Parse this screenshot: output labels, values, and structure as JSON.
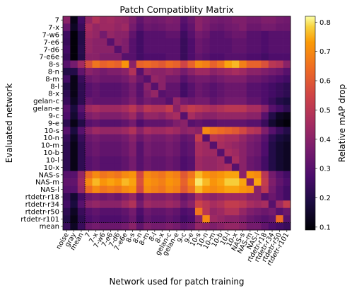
{
  "chart_data": {
    "type": "heatmap",
    "title": "Patch Compatiblity Matrix",
    "xlabel": "Network used for patch training",
    "ylabel": "Evaluated network",
    "colorbar_label": "Relative mAP drop",
    "colorbar_ticks": [
      0.1,
      0.2,
      0.3,
      0.4,
      0.5,
      0.6,
      0.7,
      0.8
    ],
    "value_range": [
      0.09,
      0.82
    ],
    "colormap": "inferno",
    "x_labels": [
      "noise",
      "gray",
      "mean",
      "7",
      "7-x",
      "7-w6",
      "7-e6",
      "7-d6",
      "7-e6e",
      "8-s",
      "8-n",
      "8-m",
      "8-l",
      "8-x",
      "gelan-c",
      "gelan-e",
      "9-c",
      "9-e",
      "10-s",
      "10-n",
      "10-m",
      "10-b",
      "10-l",
      "10-x",
      "NAS-s",
      "NAS-m",
      "NAS-l",
      "rtdetr-r18",
      "rtdetr-r34",
      "rtdetr-r50",
      "rtdetr-r101"
    ],
    "y_labels": [
      "7",
      "7-x",
      "7-w6",
      "7-e6",
      "7-d6",
      "7-e6e",
      "8-s",
      "8-n",
      "8-m",
      "8-l",
      "8-x",
      "gelan-c",
      "gelan-e",
      "9-c",
      "9-e",
      "10-s",
      "10-n",
      "10-m",
      "10-b",
      "10-l",
      "10-x",
      "NAS-s",
      "NAS-m",
      "NAS-l",
      "rtdetr-r18",
      "rtdetr-r34",
      "rtdetr-r50",
      "rtdetr-r101",
      "mean"
    ],
    "values": [
      [
        0.4,
        0.12,
        0.26,
        0.42,
        0.48,
        0.44,
        0.45,
        0.43,
        0.42,
        0.38,
        0.32,
        0.36,
        0.35,
        0.36,
        0.38,
        0.37,
        0.3,
        0.34,
        0.4,
        0.38,
        0.36,
        0.35,
        0.36,
        0.38,
        0.38,
        0.36,
        0.36,
        0.38,
        0.38,
        0.36,
        0.35
      ],
      [
        0.33,
        0.14,
        0.24,
        0.46,
        0.42,
        0.44,
        0.44,
        0.42,
        0.44,
        0.36,
        0.3,
        0.34,
        0.33,
        0.34,
        0.36,
        0.36,
        0.28,
        0.32,
        0.4,
        0.37,
        0.34,
        0.33,
        0.35,
        0.36,
        0.38,
        0.34,
        0.34,
        0.36,
        0.36,
        0.34,
        0.34
      ],
      [
        0.25,
        0.1,
        0.2,
        0.44,
        0.42,
        0.36,
        0.42,
        0.4,
        0.4,
        0.32,
        0.26,
        0.3,
        0.3,
        0.3,
        0.32,
        0.32,
        0.25,
        0.3,
        0.36,
        0.34,
        0.3,
        0.3,
        0.32,
        0.34,
        0.34,
        0.3,
        0.3,
        0.28,
        0.3,
        0.3,
        0.3
      ],
      [
        0.24,
        0.1,
        0.2,
        0.42,
        0.4,
        0.4,
        0.3,
        0.4,
        0.38,
        0.3,
        0.26,
        0.3,
        0.3,
        0.3,
        0.3,
        0.3,
        0.24,
        0.28,
        0.34,
        0.32,
        0.3,
        0.3,
        0.3,
        0.32,
        0.32,
        0.3,
        0.3,
        0.28,
        0.3,
        0.3,
        0.3
      ],
      [
        0.26,
        0.1,
        0.21,
        0.42,
        0.4,
        0.4,
        0.4,
        0.3,
        0.38,
        0.3,
        0.26,
        0.3,
        0.3,
        0.3,
        0.3,
        0.3,
        0.24,
        0.28,
        0.34,
        0.32,
        0.3,
        0.3,
        0.3,
        0.32,
        0.32,
        0.3,
        0.3,
        0.28,
        0.3,
        0.3,
        0.3
      ],
      [
        0.24,
        0.1,
        0.2,
        0.4,
        0.4,
        0.38,
        0.38,
        0.38,
        0.3,
        0.3,
        0.26,
        0.28,
        0.28,
        0.28,
        0.3,
        0.3,
        0.24,
        0.28,
        0.32,
        0.3,
        0.28,
        0.28,
        0.3,
        0.3,
        0.3,
        0.28,
        0.28,
        0.26,
        0.28,
        0.28,
        0.28
      ],
      [
        0.3,
        0.36,
        0.45,
        0.58,
        0.66,
        0.62,
        0.64,
        0.62,
        0.72,
        0.4,
        0.62,
        0.64,
        0.62,
        0.6,
        0.64,
        0.62,
        0.55,
        0.62,
        0.7,
        0.68,
        0.62,
        0.66,
        0.74,
        0.76,
        0.68,
        0.62,
        0.62,
        0.58,
        0.5,
        0.48,
        0.4
      ],
      [
        0.2,
        0.2,
        0.32,
        0.4,
        0.38,
        0.36,
        0.38,
        0.38,
        0.4,
        0.48,
        0.3,
        0.42,
        0.4,
        0.4,
        0.42,
        0.4,
        0.36,
        0.4,
        0.44,
        0.44,
        0.4,
        0.42,
        0.44,
        0.46,
        0.44,
        0.4,
        0.4,
        0.38,
        0.36,
        0.34,
        0.3
      ],
      [
        0.26,
        0.12,
        0.24,
        0.34,
        0.36,
        0.34,
        0.34,
        0.34,
        0.36,
        0.4,
        0.34,
        0.3,
        0.42,
        0.4,
        0.36,
        0.36,
        0.3,
        0.34,
        0.36,
        0.36,
        0.34,
        0.36,
        0.38,
        0.38,
        0.38,
        0.34,
        0.34,
        0.32,
        0.3,
        0.28,
        0.26
      ],
      [
        0.2,
        0.12,
        0.22,
        0.3,
        0.32,
        0.3,
        0.3,
        0.3,
        0.32,
        0.36,
        0.3,
        0.4,
        0.3,
        0.4,
        0.32,
        0.32,
        0.26,
        0.3,
        0.34,
        0.32,
        0.3,
        0.32,
        0.34,
        0.34,
        0.34,
        0.3,
        0.3,
        0.28,
        0.26,
        0.24,
        0.22
      ],
      [
        0.22,
        0.12,
        0.22,
        0.3,
        0.32,
        0.3,
        0.3,
        0.3,
        0.32,
        0.36,
        0.3,
        0.38,
        0.42,
        0.3,
        0.32,
        0.32,
        0.26,
        0.3,
        0.34,
        0.32,
        0.3,
        0.32,
        0.34,
        0.34,
        0.34,
        0.3,
        0.3,
        0.28,
        0.26,
        0.24,
        0.22
      ],
      [
        0.24,
        0.14,
        0.22,
        0.34,
        0.32,
        0.32,
        0.32,
        0.32,
        0.34,
        0.38,
        0.32,
        0.36,
        0.34,
        0.34,
        0.3,
        0.42,
        0.36,
        0.34,
        0.36,
        0.36,
        0.32,
        0.34,
        0.36,
        0.36,
        0.36,
        0.32,
        0.32,
        0.28,
        0.24,
        0.2,
        0.18
      ],
      [
        0.3,
        0.18,
        0.3,
        0.44,
        0.46,
        0.44,
        0.44,
        0.44,
        0.46,
        0.5,
        0.44,
        0.5,
        0.48,
        0.48,
        0.52,
        0.4,
        0.48,
        0.52,
        0.5,
        0.48,
        0.46,
        0.48,
        0.5,
        0.5,
        0.5,
        0.46,
        0.46,
        0.4,
        0.3,
        0.26,
        0.22
      ],
      [
        0.28,
        0.16,
        0.26,
        0.38,
        0.4,
        0.38,
        0.38,
        0.38,
        0.4,
        0.44,
        0.36,
        0.42,
        0.42,
        0.4,
        0.44,
        0.46,
        0.3,
        0.46,
        0.42,
        0.4,
        0.4,
        0.42,
        0.42,
        0.42,
        0.42,
        0.4,
        0.4,
        0.3,
        0.2,
        0.14,
        0.12
      ],
      [
        0.22,
        0.12,
        0.2,
        0.3,
        0.32,
        0.3,
        0.3,
        0.3,
        0.32,
        0.36,
        0.28,
        0.32,
        0.32,
        0.32,
        0.34,
        0.38,
        0.4,
        0.3,
        0.32,
        0.3,
        0.3,
        0.32,
        0.32,
        0.32,
        0.32,
        0.3,
        0.3,
        0.24,
        0.16,
        0.12,
        0.1
      ],
      [
        0.3,
        0.18,
        0.3,
        0.4,
        0.44,
        0.42,
        0.42,
        0.42,
        0.44,
        0.48,
        0.4,
        0.46,
        0.44,
        0.44,
        0.46,
        0.44,
        0.4,
        0.42,
        0.4,
        0.7,
        0.66,
        0.64,
        0.62,
        0.6,
        0.56,
        0.5,
        0.48,
        0.38,
        0.3,
        0.24,
        0.2
      ],
      [
        0.24,
        0.14,
        0.24,
        0.34,
        0.36,
        0.34,
        0.34,
        0.34,
        0.36,
        0.4,
        0.34,
        0.38,
        0.36,
        0.36,
        0.38,
        0.36,
        0.32,
        0.34,
        0.52,
        0.3,
        0.5,
        0.48,
        0.46,
        0.46,
        0.42,
        0.38,
        0.36,
        0.3,
        0.22,
        0.18,
        0.16
      ],
      [
        0.22,
        0.12,
        0.22,
        0.32,
        0.34,
        0.32,
        0.32,
        0.32,
        0.34,
        0.38,
        0.3,
        0.36,
        0.34,
        0.34,
        0.36,
        0.34,
        0.3,
        0.32,
        0.46,
        0.44,
        0.3,
        0.46,
        0.44,
        0.42,
        0.4,
        0.36,
        0.34,
        0.28,
        0.2,
        0.16,
        0.14
      ],
      [
        0.22,
        0.12,
        0.22,
        0.32,
        0.34,
        0.32,
        0.32,
        0.32,
        0.34,
        0.38,
        0.3,
        0.36,
        0.34,
        0.34,
        0.36,
        0.34,
        0.3,
        0.32,
        0.46,
        0.44,
        0.44,
        0.3,
        0.46,
        0.44,
        0.4,
        0.36,
        0.34,
        0.28,
        0.2,
        0.16,
        0.14
      ],
      [
        0.22,
        0.12,
        0.22,
        0.3,
        0.32,
        0.3,
        0.3,
        0.3,
        0.32,
        0.36,
        0.3,
        0.34,
        0.32,
        0.32,
        0.34,
        0.32,
        0.28,
        0.3,
        0.44,
        0.42,
        0.42,
        0.44,
        0.3,
        0.46,
        0.4,
        0.34,
        0.32,
        0.26,
        0.2,
        0.16,
        0.14
      ],
      [
        0.22,
        0.12,
        0.22,
        0.3,
        0.32,
        0.3,
        0.3,
        0.3,
        0.32,
        0.36,
        0.3,
        0.34,
        0.32,
        0.32,
        0.34,
        0.32,
        0.28,
        0.3,
        0.44,
        0.42,
        0.42,
        0.44,
        0.46,
        0.3,
        0.4,
        0.34,
        0.32,
        0.26,
        0.2,
        0.16,
        0.14
      ],
      [
        0.3,
        0.3,
        0.42,
        0.64,
        0.7,
        0.66,
        0.68,
        0.66,
        0.7,
        0.72,
        0.56,
        0.7,
        0.68,
        0.66,
        0.7,
        0.68,
        0.6,
        0.66,
        0.76,
        0.72,
        0.7,
        0.72,
        0.74,
        0.74,
        0.4,
        0.72,
        0.7,
        0.5,
        0.36,
        0.3,
        0.26
      ],
      [
        0.32,
        0.32,
        0.44,
        0.7,
        0.76,
        0.72,
        0.74,
        0.72,
        0.76,
        0.74,
        0.58,
        0.72,
        0.7,
        0.68,
        0.72,
        0.7,
        0.62,
        0.7,
        0.8,
        0.76,
        0.72,
        0.74,
        0.78,
        0.78,
        0.74,
        0.4,
        0.74,
        0.52,
        0.38,
        0.32,
        0.28
      ],
      [
        0.3,
        0.3,
        0.42,
        0.64,
        0.7,
        0.66,
        0.68,
        0.66,
        0.7,
        0.72,
        0.56,
        0.7,
        0.68,
        0.66,
        0.7,
        0.68,
        0.6,
        0.66,
        0.76,
        0.72,
        0.7,
        0.72,
        0.74,
        0.74,
        0.72,
        0.7,
        0.4,
        0.5,
        0.36,
        0.3,
        0.26
      ],
      [
        0.24,
        0.16,
        0.26,
        0.34,
        0.36,
        0.34,
        0.36,
        0.34,
        0.38,
        0.42,
        0.32,
        0.4,
        0.38,
        0.38,
        0.4,
        0.38,
        0.32,
        0.36,
        0.46,
        0.42,
        0.4,
        0.42,
        0.44,
        0.44,
        0.44,
        0.4,
        0.4,
        0.3,
        0.34,
        0.3,
        0.26
      ],
      [
        0.26,
        0.18,
        0.3,
        0.4,
        0.42,
        0.4,
        0.4,
        0.4,
        0.44,
        0.48,
        0.36,
        0.44,
        0.42,
        0.42,
        0.44,
        0.42,
        0.36,
        0.4,
        0.54,
        0.5,
        0.46,
        0.48,
        0.52,
        0.52,
        0.5,
        0.46,
        0.44,
        0.46,
        0.3,
        0.44,
        0.52
      ],
      [
        0.22,
        0.14,
        0.24,
        0.3,
        0.32,
        0.3,
        0.3,
        0.3,
        0.32,
        0.36,
        0.28,
        0.34,
        0.32,
        0.32,
        0.34,
        0.32,
        0.28,
        0.3,
        0.66,
        0.5,
        0.42,
        0.44,
        0.48,
        0.48,
        0.42,
        0.38,
        0.36,
        0.34,
        0.36,
        0.3,
        0.34
      ],
      [
        0.2,
        0.12,
        0.22,
        0.28,
        0.3,
        0.28,
        0.28,
        0.28,
        0.3,
        0.34,
        0.26,
        0.32,
        0.3,
        0.3,
        0.32,
        0.3,
        0.26,
        0.28,
        0.4,
        0.7,
        0.44,
        0.42,
        0.4,
        0.4,
        0.38,
        0.34,
        0.32,
        0.3,
        0.32,
        0.64,
        0.3
      ],
      [
        0.24,
        0.14,
        0.24,
        0.34,
        0.36,
        0.34,
        0.34,
        0.34,
        0.36,
        0.4,
        0.32,
        0.38,
        0.36,
        0.36,
        0.38,
        0.36,
        0.32,
        0.34,
        0.42,
        0.4,
        0.38,
        0.4,
        0.42,
        0.42,
        0.4,
        0.36,
        0.36,
        0.32,
        0.28,
        0.26,
        0.24
      ]
    ]
  }
}
